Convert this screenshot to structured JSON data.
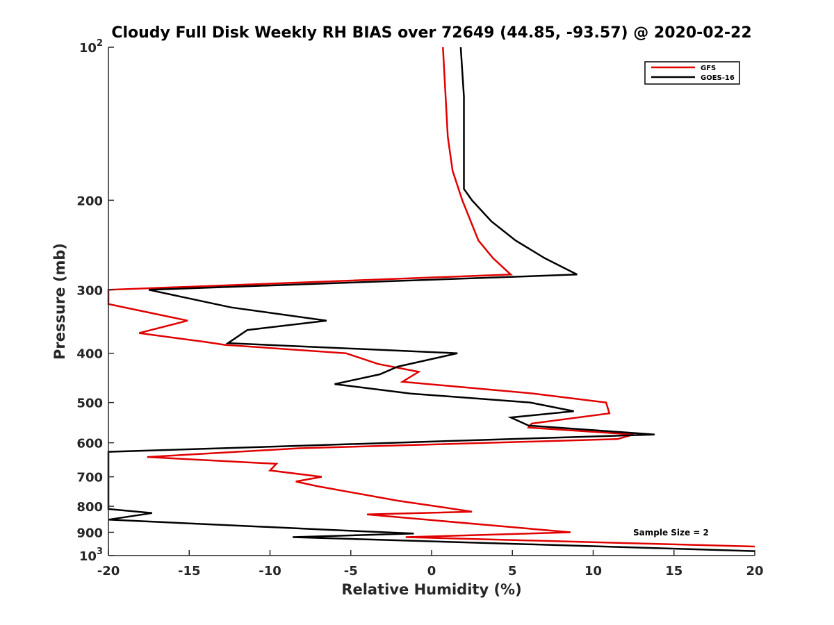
{
  "chart_data": {
    "type": "line",
    "title": "Cloudy Full Disk Weekly RH BIAS over 72649 (44.85, -93.57) @ 2020-02-22",
    "xlabel": "Relative Humidity (%)",
    "ylabel": "Pressure (mb)",
    "xlim": [
      -20,
      20
    ],
    "ylim": [
      100,
      1000
    ],
    "y_scale": "log",
    "y_reversed": true,
    "grid": false,
    "legend_position": "top-right",
    "x_ticks": [
      {
        "value": -20,
        "label": "-20"
      },
      {
        "value": -15,
        "label": "-15"
      },
      {
        "value": -10,
        "label": "-10"
      },
      {
        "value": -5,
        "label": "-5"
      },
      {
        "value": 0,
        "label": "0"
      },
      {
        "value": 5,
        "label": "5"
      },
      {
        "value": 10,
        "label": "10"
      },
      {
        "value": 15,
        "label": "15"
      },
      {
        "value": 20,
        "label": "20"
      }
    ],
    "y_ticks": [
      {
        "value": 100,
        "base": "10",
        "exp": "2"
      },
      {
        "value": 200,
        "base": "200",
        "exp": ""
      },
      {
        "value": 300,
        "base": "300",
        "exp": ""
      },
      {
        "value": 400,
        "base": "400",
        "exp": ""
      },
      {
        "value": 500,
        "base": "500",
        "exp": ""
      },
      {
        "value": 600,
        "base": "600",
        "exp": ""
      },
      {
        "value": 700,
        "base": "700",
        "exp": ""
      },
      {
        "value": 800,
        "base": "800",
        "exp": ""
      },
      {
        "value": 900,
        "base": "900",
        "exp": ""
      },
      {
        "value": 1000,
        "base": "10",
        "exp": "3"
      }
    ],
    "annotation": "Sample Size = 2",
    "series": [
      {
        "name": "GFS",
        "color": "#e00000",
        "points": [
          [
            0.7,
            100
          ],
          [
            1.0,
            150
          ],
          [
            1.3,
            175
          ],
          [
            1.9,
            200
          ],
          [
            2.9,
            240
          ],
          [
            3.8,
            260
          ],
          [
            4.9,
            280
          ],
          [
            -20,
            300
          ],
          [
            -20,
            320
          ],
          [
            -15.1,
            345
          ],
          [
            -18.1,
            365
          ],
          [
            -14,
            380
          ],
          [
            -12.8,
            385
          ],
          [
            -5.3,
            400
          ],
          [
            -3.3,
            420
          ],
          [
            -0.8,
            435
          ],
          [
            -1.8,
            455
          ],
          [
            6.3,
            480
          ],
          [
            10.8,
            500
          ],
          [
            11.0,
            525
          ],
          [
            6.2,
            550
          ],
          [
            6.0,
            560
          ],
          [
            12.5,
            578
          ],
          [
            11.5,
            590
          ],
          [
            -8.2,
            615
          ],
          [
            -17.6,
            640
          ],
          [
            -9.6,
            660
          ],
          [
            -10.0,
            680
          ],
          [
            -6.8,
            700
          ],
          [
            -8.4,
            715
          ],
          [
            -7.1,
            730
          ],
          [
            -2.1,
            780
          ],
          [
            0.3,
            800
          ],
          [
            2.5,
            820
          ],
          [
            -4.0,
            830
          ],
          [
            8.6,
            900
          ],
          [
            -1.6,
            920
          ],
          [
            20,
            960
          ]
        ]
      },
      {
        "name": "GOES-16",
        "color": "#000000",
        "points": [
          [
            1.8,
            100
          ],
          [
            2.0,
            125
          ],
          [
            2.0,
            150
          ],
          [
            2.0,
            175
          ],
          [
            2.0,
            190
          ],
          [
            2.5,
            200
          ],
          [
            3.7,
            220
          ],
          [
            5.2,
            240
          ],
          [
            7.0,
            260
          ],
          [
            9.0,
            280
          ],
          [
            -17.5,
            300
          ],
          [
            -12.4,
            325
          ],
          [
            -6.5,
            345
          ],
          [
            -11.4,
            360
          ],
          [
            -12.6,
            382
          ],
          [
            1.6,
            400
          ],
          [
            -2.1,
            425
          ],
          [
            -3.2,
            440
          ],
          [
            -6.0,
            460
          ],
          [
            -1.3,
            480
          ],
          [
            6.1,
            500
          ],
          [
            8.8,
            520
          ],
          [
            4.9,
            535
          ],
          [
            6.0,
            555
          ],
          [
            13.8,
            578
          ],
          [
            -20,
            625
          ],
          [
            -20,
            810
          ],
          [
            -17.3,
            825
          ],
          [
            -20,
            850
          ],
          [
            -6.3,
            890
          ],
          [
            -1.1,
            905
          ],
          [
            -8.6,
            920
          ],
          [
            20,
            980
          ]
        ]
      }
    ]
  }
}
